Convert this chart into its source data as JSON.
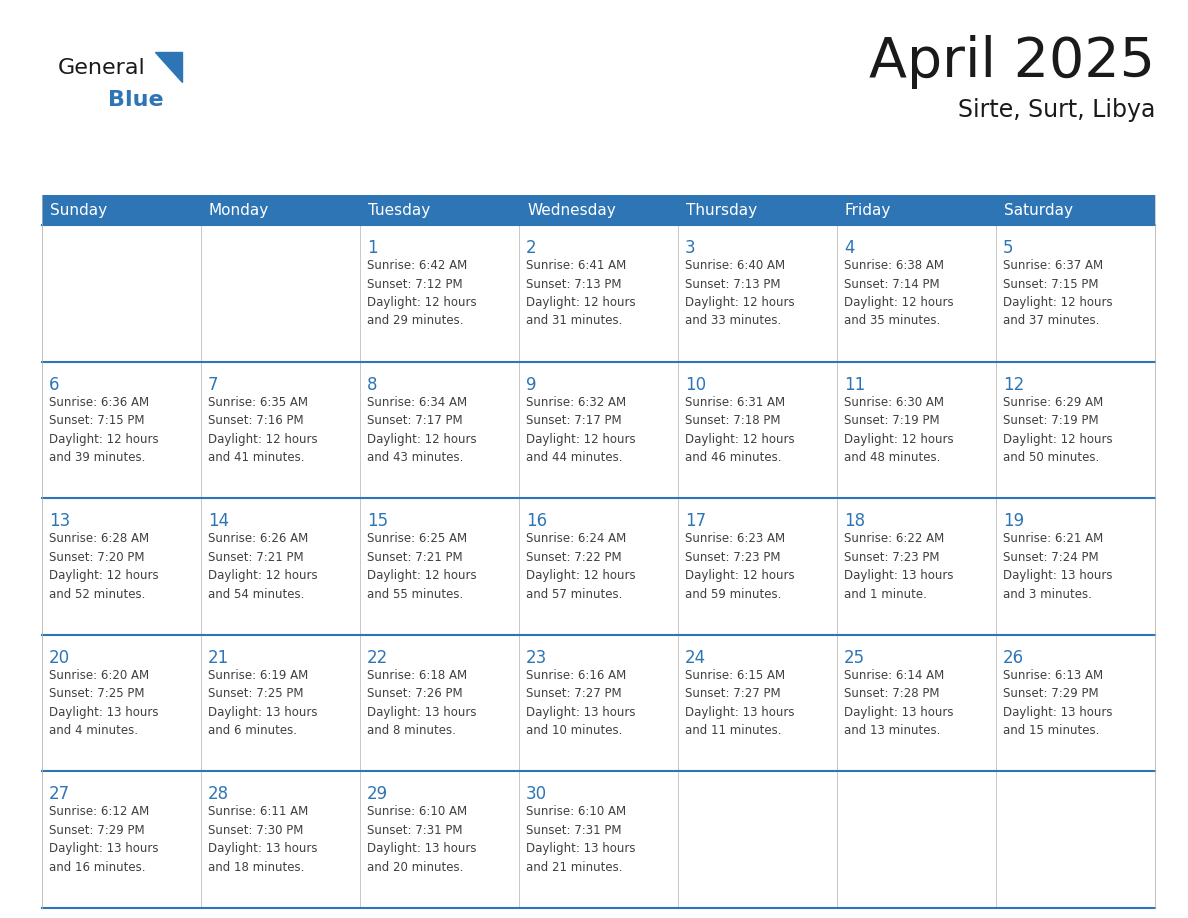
{
  "title": "April 2025",
  "subtitle": "Sirte, Surt, Libya",
  "header_bg_color": "#2E75B6",
  "header_text_color": "#FFFFFF",
  "cell_bg_color": "#FFFFFF",
  "cell_alt_bg_color": "#F2F2F2",
  "cell_border_color": "#2E75B6",
  "day_number_color": "#2E75B6",
  "cell_text_color": "#404040",
  "background_color": "#FFFFFF",
  "days_of_week": [
    "Sunday",
    "Monday",
    "Tuesday",
    "Wednesday",
    "Thursday",
    "Friday",
    "Saturday"
  ],
  "calendar_data": [
    [
      {
        "day": null,
        "info": null
      },
      {
        "day": null,
        "info": null
      },
      {
        "day": 1,
        "info": "Sunrise: 6:42 AM\nSunset: 7:12 PM\nDaylight: 12 hours\nand 29 minutes."
      },
      {
        "day": 2,
        "info": "Sunrise: 6:41 AM\nSunset: 7:13 PM\nDaylight: 12 hours\nand 31 minutes."
      },
      {
        "day": 3,
        "info": "Sunrise: 6:40 AM\nSunset: 7:13 PM\nDaylight: 12 hours\nand 33 minutes."
      },
      {
        "day": 4,
        "info": "Sunrise: 6:38 AM\nSunset: 7:14 PM\nDaylight: 12 hours\nand 35 minutes."
      },
      {
        "day": 5,
        "info": "Sunrise: 6:37 AM\nSunset: 7:15 PM\nDaylight: 12 hours\nand 37 minutes."
      }
    ],
    [
      {
        "day": 6,
        "info": "Sunrise: 6:36 AM\nSunset: 7:15 PM\nDaylight: 12 hours\nand 39 minutes."
      },
      {
        "day": 7,
        "info": "Sunrise: 6:35 AM\nSunset: 7:16 PM\nDaylight: 12 hours\nand 41 minutes."
      },
      {
        "day": 8,
        "info": "Sunrise: 6:34 AM\nSunset: 7:17 PM\nDaylight: 12 hours\nand 43 minutes."
      },
      {
        "day": 9,
        "info": "Sunrise: 6:32 AM\nSunset: 7:17 PM\nDaylight: 12 hours\nand 44 minutes."
      },
      {
        "day": 10,
        "info": "Sunrise: 6:31 AM\nSunset: 7:18 PM\nDaylight: 12 hours\nand 46 minutes."
      },
      {
        "day": 11,
        "info": "Sunrise: 6:30 AM\nSunset: 7:19 PM\nDaylight: 12 hours\nand 48 minutes."
      },
      {
        "day": 12,
        "info": "Sunrise: 6:29 AM\nSunset: 7:19 PM\nDaylight: 12 hours\nand 50 minutes."
      }
    ],
    [
      {
        "day": 13,
        "info": "Sunrise: 6:28 AM\nSunset: 7:20 PM\nDaylight: 12 hours\nand 52 minutes."
      },
      {
        "day": 14,
        "info": "Sunrise: 6:26 AM\nSunset: 7:21 PM\nDaylight: 12 hours\nand 54 minutes."
      },
      {
        "day": 15,
        "info": "Sunrise: 6:25 AM\nSunset: 7:21 PM\nDaylight: 12 hours\nand 55 minutes."
      },
      {
        "day": 16,
        "info": "Sunrise: 6:24 AM\nSunset: 7:22 PM\nDaylight: 12 hours\nand 57 minutes."
      },
      {
        "day": 17,
        "info": "Sunrise: 6:23 AM\nSunset: 7:23 PM\nDaylight: 12 hours\nand 59 minutes."
      },
      {
        "day": 18,
        "info": "Sunrise: 6:22 AM\nSunset: 7:23 PM\nDaylight: 13 hours\nand 1 minute."
      },
      {
        "day": 19,
        "info": "Sunrise: 6:21 AM\nSunset: 7:24 PM\nDaylight: 13 hours\nand 3 minutes."
      }
    ],
    [
      {
        "day": 20,
        "info": "Sunrise: 6:20 AM\nSunset: 7:25 PM\nDaylight: 13 hours\nand 4 minutes."
      },
      {
        "day": 21,
        "info": "Sunrise: 6:19 AM\nSunset: 7:25 PM\nDaylight: 13 hours\nand 6 minutes."
      },
      {
        "day": 22,
        "info": "Sunrise: 6:18 AM\nSunset: 7:26 PM\nDaylight: 13 hours\nand 8 minutes."
      },
      {
        "day": 23,
        "info": "Sunrise: 6:16 AM\nSunset: 7:27 PM\nDaylight: 13 hours\nand 10 minutes."
      },
      {
        "day": 24,
        "info": "Sunrise: 6:15 AM\nSunset: 7:27 PM\nDaylight: 13 hours\nand 11 minutes."
      },
      {
        "day": 25,
        "info": "Sunrise: 6:14 AM\nSunset: 7:28 PM\nDaylight: 13 hours\nand 13 minutes."
      },
      {
        "day": 26,
        "info": "Sunrise: 6:13 AM\nSunset: 7:29 PM\nDaylight: 13 hours\nand 15 minutes."
      }
    ],
    [
      {
        "day": 27,
        "info": "Sunrise: 6:12 AM\nSunset: 7:29 PM\nDaylight: 13 hours\nand 16 minutes."
      },
      {
        "day": 28,
        "info": "Sunrise: 6:11 AM\nSunset: 7:30 PM\nDaylight: 13 hours\nand 18 minutes."
      },
      {
        "day": 29,
        "info": "Sunrise: 6:10 AM\nSunset: 7:31 PM\nDaylight: 13 hours\nand 20 minutes."
      },
      {
        "day": 30,
        "info": "Sunrise: 6:10 AM\nSunset: 7:31 PM\nDaylight: 13 hours\nand 21 minutes."
      },
      {
        "day": null,
        "info": null
      },
      {
        "day": null,
        "info": null
      },
      {
        "day": null,
        "info": null
      }
    ]
  ],
  "logo_color_general": "#1a1a1a",
  "logo_color_blue": "#2E75B6",
  "logo_triangle_color": "#2E75B6",
  "title_fontsize": 40,
  "subtitle_fontsize": 17,
  "header_fontsize": 11,
  "day_number_fontsize": 12,
  "cell_text_fontsize": 8.5
}
